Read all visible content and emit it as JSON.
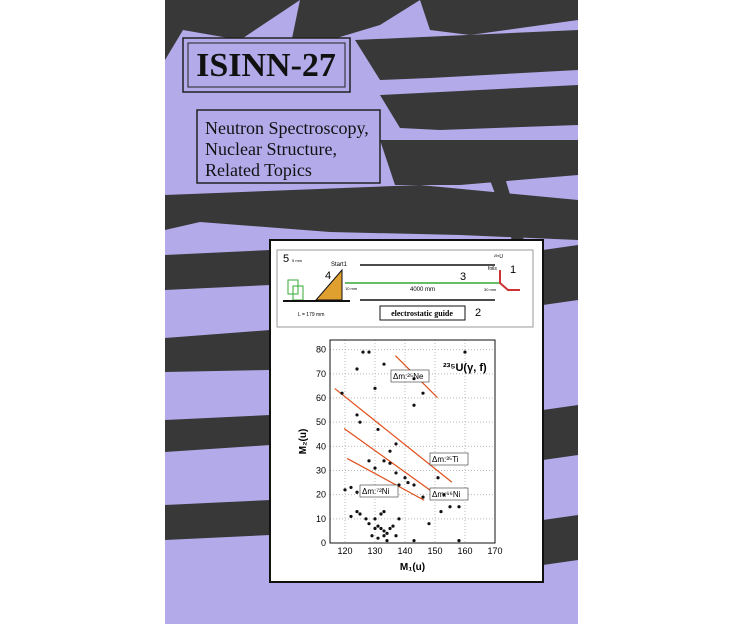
{
  "cover": {
    "title": "ISINN-27",
    "subtitle_lines": [
      "Neutron Spectroscopy,",
      "Nuclear Structure,",
      "Related Topics"
    ]
  },
  "diagram": {
    "number_5": "5",
    "number_4": "4",
    "start": "Start1",
    "number_3": "3",
    "number_1": "1",
    "number_2": "2",
    "length": "4000 mm",
    "distance": "L = 179 mm",
    "foils": "foils",
    "source": "²³⁵U",
    "gap_right": "30 mm",
    "gap_left": "10 mm",
    "height": "5 mm",
    "guide": "electrostatic guide"
  },
  "plot": {
    "x_label": "M₁(u)",
    "y_label": "M₂(u)",
    "xlim": [
      115,
      170
    ],
    "ylim": [
      0,
      84
    ],
    "xticks": [
      120,
      130,
      140,
      150,
      160,
      170
    ],
    "yticks": [
      0,
      10,
      20,
      30,
      40,
      50,
      60,
      70,
      80
    ],
    "reaction": "²³⁵U(γ, f)",
    "points": {
      "x": [
        126,
        128,
        124,
        133,
        143,
        146,
        119,
        130,
        124,
        125,
        131,
        135,
        137,
        143,
        128,
        130,
        133,
        135,
        137,
        140,
        141,
        143,
        138,
        146,
        151,
        153,
        155,
        120,
        122,
        122,
        124,
        125,
        124,
        127,
        128,
        130,
        131,
        132,
        133,
        134,
        135,
        136,
        129,
        131,
        133,
        134,
        137,
        138,
        132,
        130,
        133,
        143,
        148,
        152,
        158,
        160,
        158
      ],
      "y": [
        79,
        79,
        72,
        74,
        68,
        62,
        62,
        64,
        53,
        50,
        47,
        38,
        41,
        57,
        34,
        31,
        34,
        33,
        29,
        27,
        25,
        24,
        24,
        19,
        27,
        20,
        15,
        22,
        23,
        11,
        13,
        12,
        21,
        10,
        8,
        6,
        7,
        6,
        5,
        4,
        6,
        7,
        3,
        2,
        3,
        1,
        3,
        10,
        12,
        10,
        13,
        1,
        8,
        13,
        1,
        79,
        15
      ]
    },
    "fit_lines": [
      {
        "label": "Δm:²⁵Ne",
        "x": [
          136.8,
          150.8
        ],
        "y": [
          77.5,
          60.2
        ]
      },
      {
        "label": "Δm:³⁵Ti",
        "x": [
          116.6,
          155.6
        ],
        "y": [
          63.9,
          25.2
        ]
      },
      {
        "label": "Δm:⁶⁶Ni",
        "x": [
          119.7,
          149.8
        ],
        "y": [
          47.4,
          20.6
        ]
      },
      {
        "label": "Δm:⁷²Ni",
        "x": [
          120.7,
          146.4
        ],
        "y": [
          35,
          17.7
        ]
      }
    ]
  }
}
